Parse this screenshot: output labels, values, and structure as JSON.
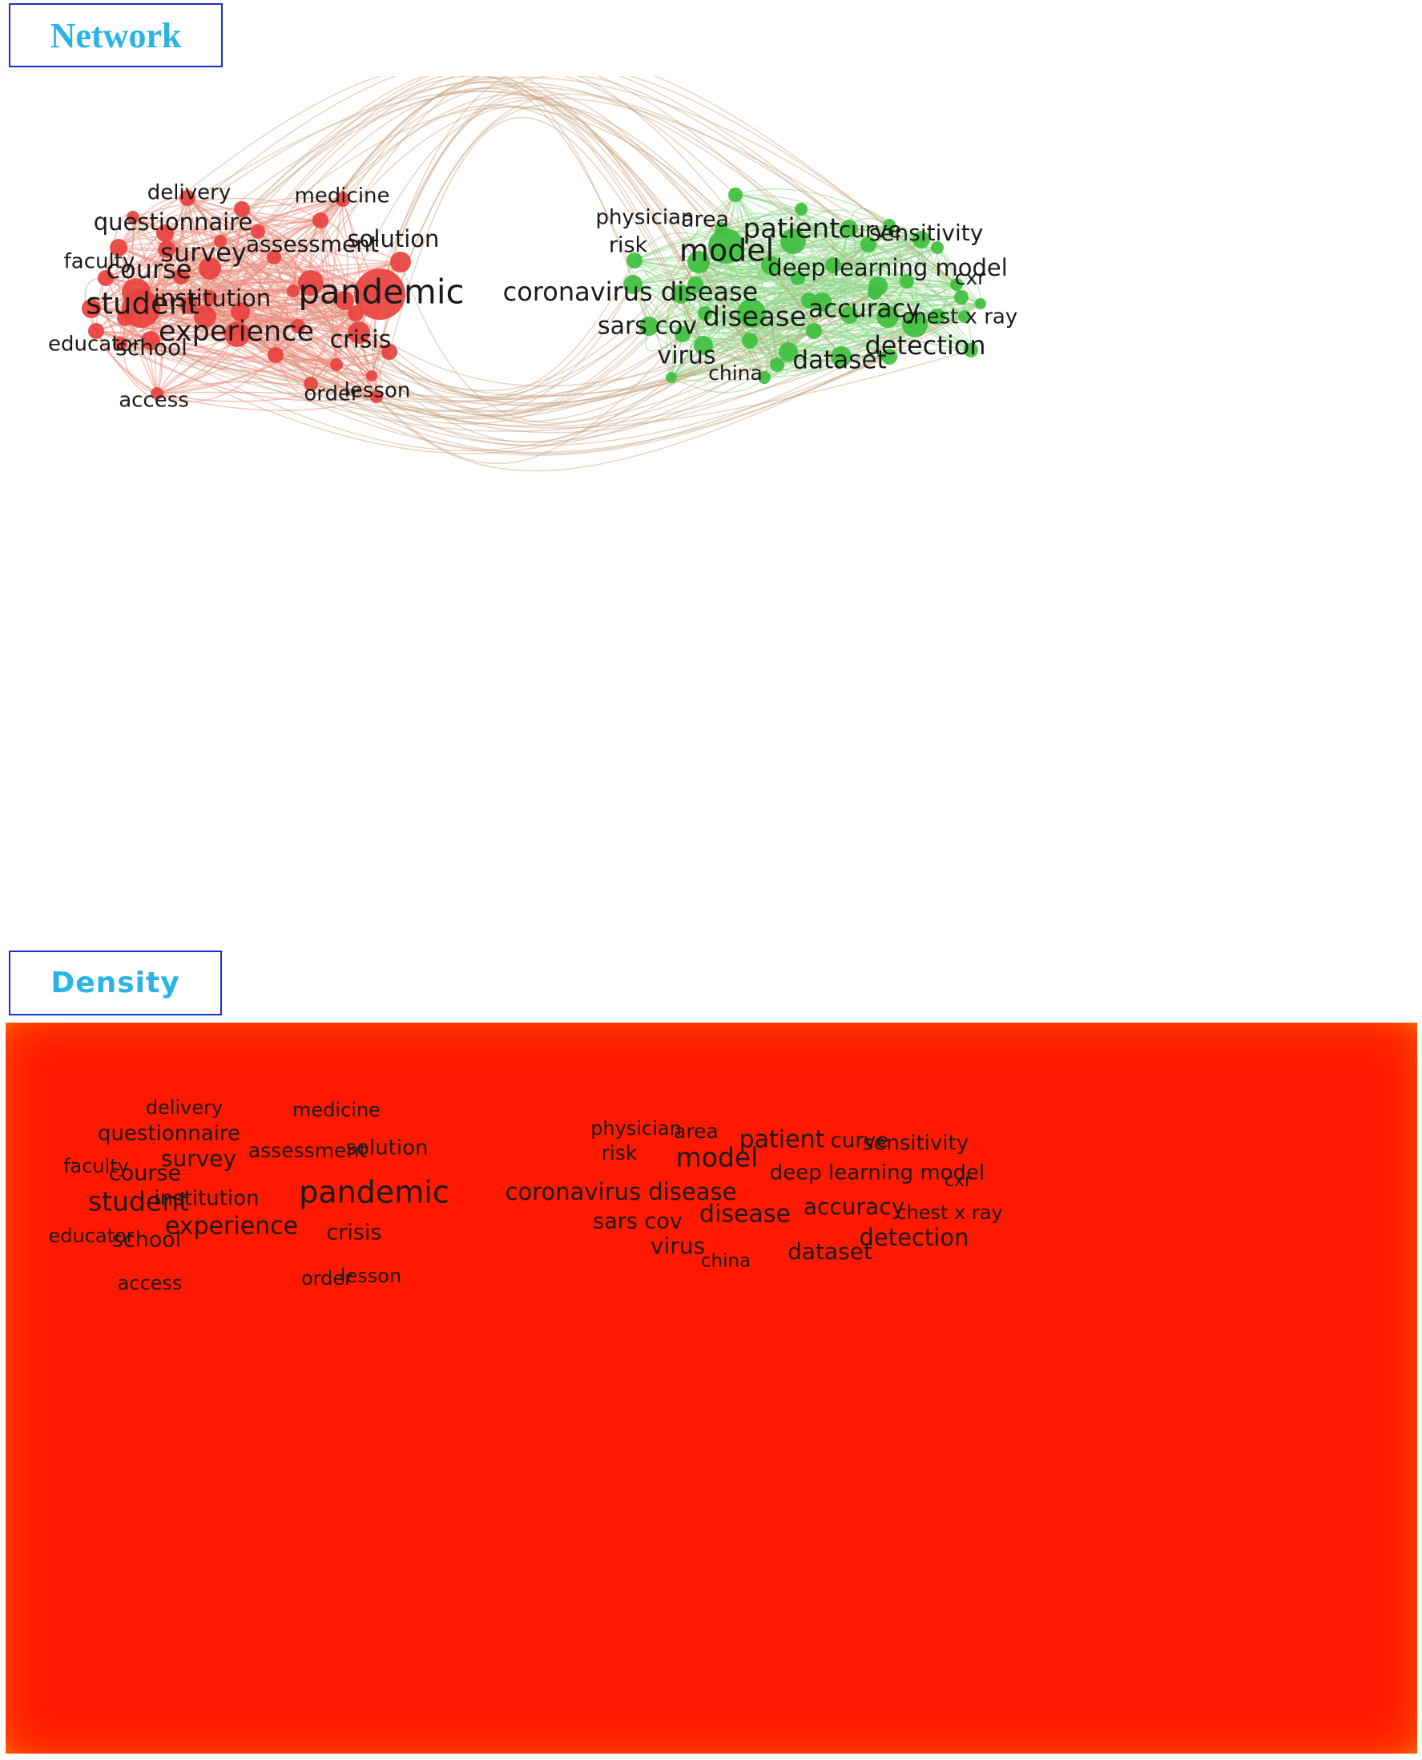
{
  "network": {
    "title": "Network",
    "colors": {
      "cluster1": "#e8423e",
      "cluster2": "#3fbf3f",
      "link1": "#ef8a7e",
      "link2": "#8fd88a",
      "bridge": "#c8a07c"
    },
    "cluster1": [
      {
        "label": "delivery",
        "size": 26
      },
      {
        "label": "medicine",
        "size": 26
      },
      {
        "label": "questionnaire",
        "size": 29
      },
      {
        "label": "solution",
        "size": 29
      },
      {
        "label": "assessment",
        "size": 28
      },
      {
        "label": "faculty",
        "size": 26
      },
      {
        "label": "survey",
        "size": 32
      },
      {
        "label": "course",
        "size": 32
      },
      {
        "label": "pandemic",
        "size": 42
      },
      {
        "label": "student",
        "size": 37
      },
      {
        "label": "institution",
        "size": 29
      },
      {
        "label": "experience",
        "size": 35
      },
      {
        "label": "crisis",
        "size": 30
      },
      {
        "label": "educator",
        "size": 26
      },
      {
        "label": "school",
        "size": 28
      },
      {
        "label": "order",
        "size": 26
      },
      {
        "label": "lesson",
        "size": 26
      },
      {
        "label": "access",
        "size": 26
      }
    ],
    "cluster2": [
      {
        "label": "physician",
        "size": 26
      },
      {
        "label": "area",
        "size": 27
      },
      {
        "label": "patient",
        "size": 34
      },
      {
        "label": "curve",
        "size": 28
      },
      {
        "label": "sensitivity",
        "size": 28
      },
      {
        "label": "risk",
        "size": 27
      },
      {
        "label": "model",
        "size": 38
      },
      {
        "label": "deep learning model",
        "size": 29
      },
      {
        "label": "cxr",
        "size": 25
      },
      {
        "label": "coronavirus disease",
        "size": 32
      },
      {
        "label": "accuracy",
        "size": 31
      },
      {
        "label": "chest x ray",
        "size": 26
      },
      {
        "label": "disease",
        "size": 34
      },
      {
        "label": "sars cov",
        "size": 30
      },
      {
        "label": "detection",
        "size": 32
      },
      {
        "label": "virus",
        "size": 30
      },
      {
        "label": "dataset",
        "size": 31
      },
      {
        "label": "china",
        "size": 25
      }
    ]
  },
  "density": {
    "title": "Density",
    "labels": [
      {
        "label": "delivery",
        "size": 24
      },
      {
        "label": "medicine",
        "size": 24
      },
      {
        "label": "questionnaire",
        "size": 26
      },
      {
        "label": "assessment",
        "size": 25
      },
      {
        "label": "solution",
        "size": 26
      },
      {
        "label": "faculty",
        "size": 24
      },
      {
        "label": "course",
        "size": 27
      },
      {
        "label": "survey",
        "size": 28
      },
      {
        "label": "pandemic",
        "size": 38
      },
      {
        "label": "student",
        "size": 33
      },
      {
        "label": "institution",
        "size": 26
      },
      {
        "label": "experience",
        "size": 30
      },
      {
        "label": "educator",
        "size": 24
      },
      {
        "label": "school",
        "size": 27
      },
      {
        "label": "crisis",
        "size": 27
      },
      {
        "label": "access",
        "size": 24
      },
      {
        "label": "order",
        "size": 24
      },
      {
        "label": "lesson",
        "size": 24
      },
      {
        "label": "physician",
        "size": 24
      },
      {
        "label": "area",
        "size": 25
      },
      {
        "label": "patient",
        "size": 30
      },
      {
        "label": "curve",
        "size": 26
      },
      {
        "label": "sensitivity",
        "size": 26
      },
      {
        "label": "risk",
        "size": 25
      },
      {
        "label": "model",
        "size": 33
      },
      {
        "label": "deep learning model",
        "size": 26
      },
      {
        "label": "cxr",
        "size": 22
      },
      {
        "label": "coronavirus disease",
        "size": 29
      },
      {
        "label": "accuracy",
        "size": 28
      },
      {
        "label": "chest x ray",
        "size": 24
      },
      {
        "label": "disease",
        "size": 30
      },
      {
        "label": "sars cov",
        "size": 27
      },
      {
        "label": "detection",
        "size": 29
      },
      {
        "label": "virus",
        "size": 28
      },
      {
        "label": "dataset",
        "size": 28
      },
      {
        "label": "china",
        "size": 23
      }
    ]
  }
}
